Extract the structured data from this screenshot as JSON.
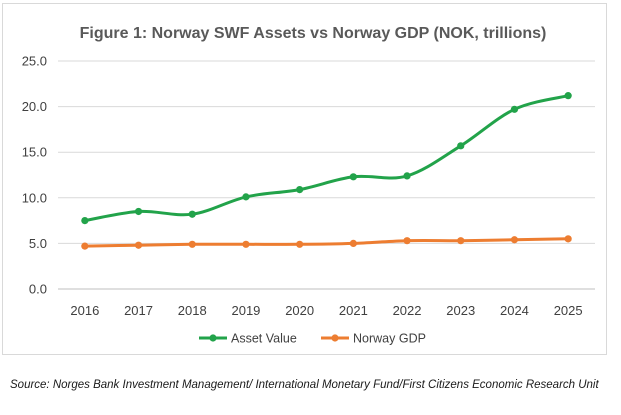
{
  "chart_data": {
    "type": "line",
    "title": "Figure 1: Norway SWF Assets vs Norway GDP (NOK, trillions)",
    "categories": [
      "2016",
      "2017",
      "2018",
      "2019",
      "2020",
      "2021",
      "2022",
      "2023",
      "2024",
      "2025"
    ],
    "series": [
      {
        "name": "Asset Value",
        "color": "#22a34a",
        "values": [
          7.5,
          8.5,
          8.2,
          10.1,
          10.9,
          12.3,
          12.4,
          15.7,
          19.7,
          21.2
        ]
      },
      {
        "name": "Norway GDP",
        "color": "#ed7d31",
        "values": [
          4.7,
          4.8,
          4.9,
          4.9,
          4.9,
          5.0,
          5.3,
          5.3,
          5.4,
          5.5
        ]
      }
    ],
    "ylim": [
      0,
      25
    ],
    "yticks": [
      "0.0",
      "5.0",
      "10.0",
      "15.0",
      "20.0",
      "25.0"
    ],
    "grid": true,
    "legend_position": "bottom",
    "xlabel": "",
    "ylabel": ""
  },
  "source_note": "Source: Norges Bank Investment Management/ International Monetary Fund/First Citizens Economic Research Unit"
}
